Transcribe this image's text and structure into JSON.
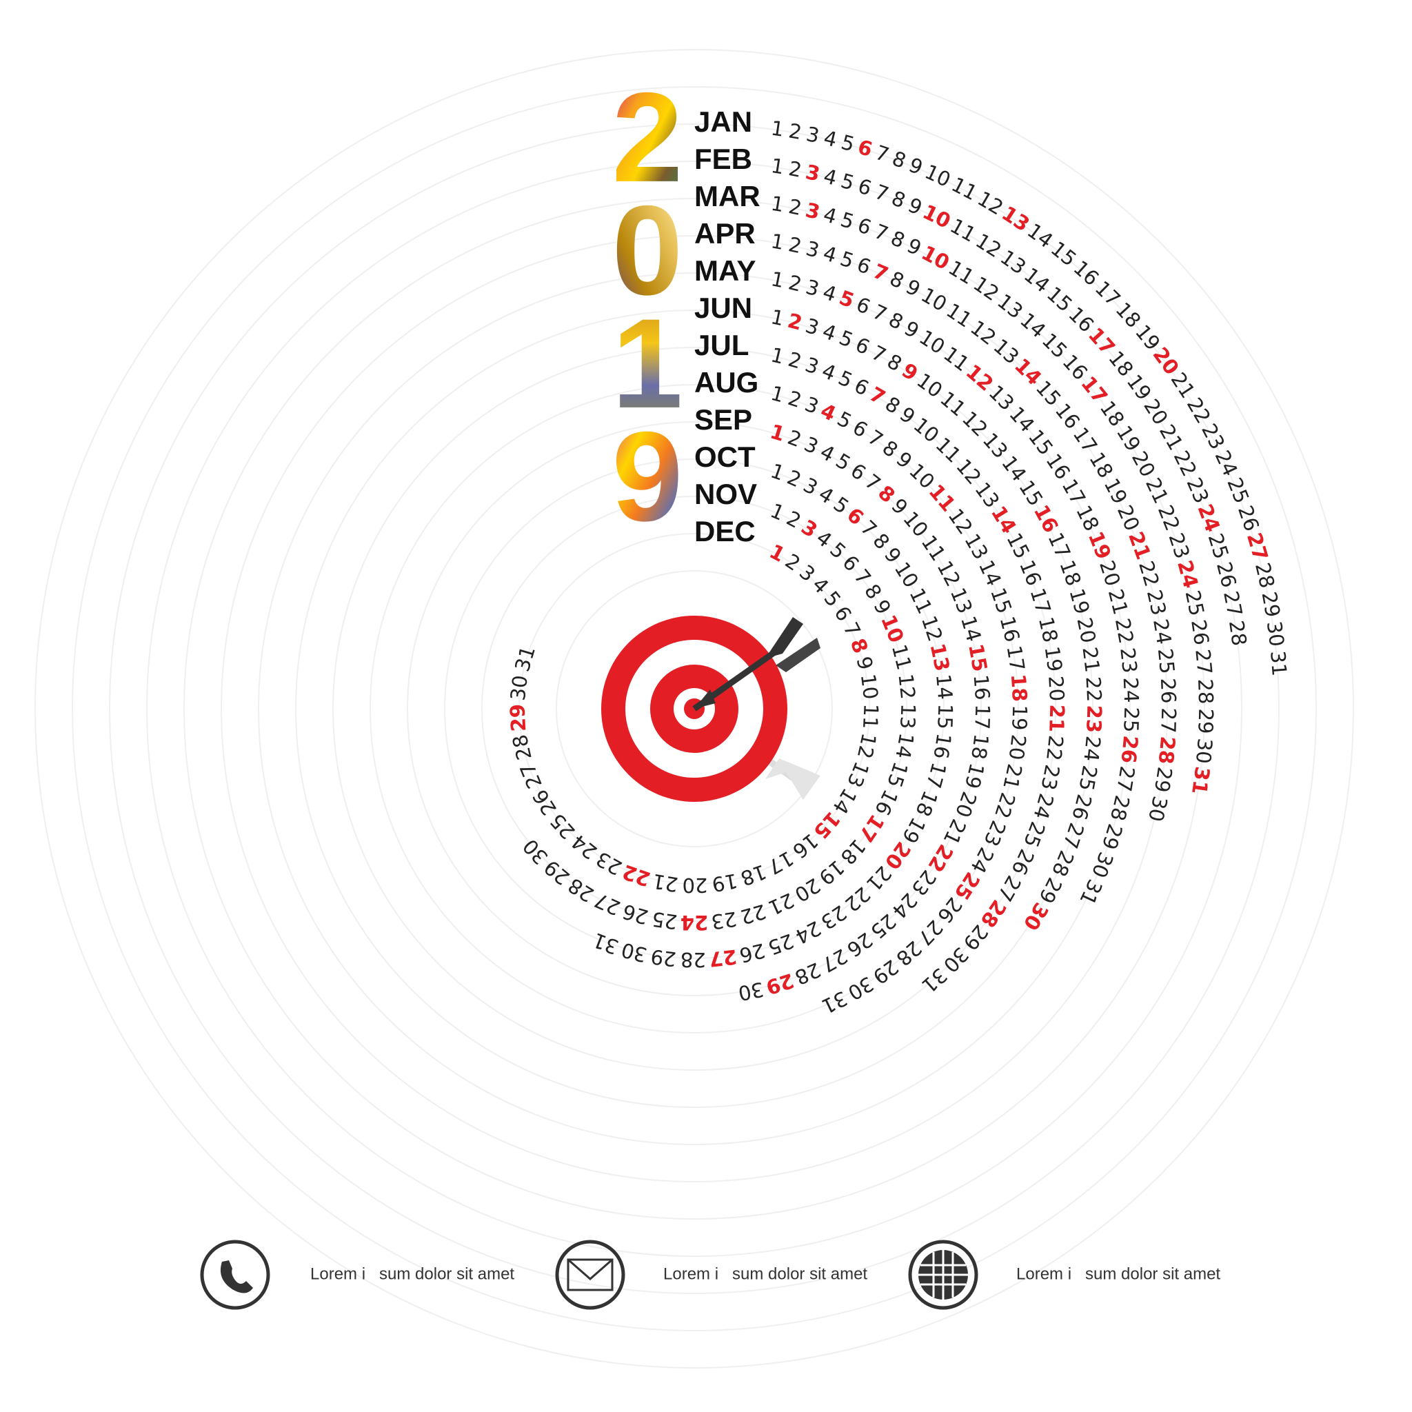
{
  "year_digits": [
    "2",
    "0",
    "1",
    "9"
  ],
  "months": [
    {
      "name": "JAN",
      "days": [
        1,
        2,
        3,
        4,
        5,
        6,
        7,
        8,
        9,
        10,
        11,
        12,
        13,
        14,
        15,
        16,
        17,
        18,
        19,
        20,
        21,
        22,
        23,
        24,
        25,
        26,
        27,
        28,
        29,
        30,
        31
      ],
      "red_days": [
        6,
        13,
        20,
        27
      ]
    },
    {
      "name": "FEB",
      "days": [
        1,
        2,
        3,
        4,
        5,
        6,
        7,
        8,
        9,
        10,
        11,
        12,
        13,
        14,
        15,
        16,
        17,
        18,
        19,
        20,
        21,
        22,
        23,
        24,
        25,
        26,
        27,
        28
      ],
      "red_days": [
        3,
        10,
        17,
        24
      ]
    },
    {
      "name": "MAR",
      "days": [
        1,
        2,
        3,
        4,
        5,
        6,
        7,
        8,
        9,
        10,
        11,
        12,
        13,
        14,
        15,
        16,
        17,
        18,
        19,
        20,
        21,
        22,
        23,
        24,
        25,
        26,
        27,
        28,
        29,
        30,
        31
      ],
      "red_days": [
        3,
        10,
        17,
        24,
        31
      ]
    },
    {
      "name": "APR",
      "days": [
        1,
        2,
        3,
        4,
        5,
        6,
        7,
        8,
        9,
        10,
        11,
        12,
        13,
        14,
        15,
        16,
        17,
        18,
        19,
        20,
        21,
        22,
        23,
        24,
        25,
        26,
        27,
        28,
        29,
        30
      ],
      "red_days": [
        7,
        14,
        21,
        28
      ]
    },
    {
      "name": "MAY",
      "days": [
        1,
        2,
        3,
        4,
        5,
        6,
        7,
        8,
        9,
        10,
        11,
        12,
        13,
        14,
        15,
        16,
        17,
        18,
        19,
        20,
        21,
        22,
        23,
        24,
        25,
        26,
        27,
        28,
        29,
        30,
        31
      ],
      "red_days": [
        5,
        12,
        19,
        26
      ]
    },
    {
      "name": "JUN",
      "days": [
        1,
        2,
        3,
        4,
        5,
        6,
        7,
        8,
        9,
        10,
        11,
        12,
        13,
        14,
        15,
        16,
        17,
        18,
        19,
        20,
        21,
        22,
        23,
        24,
        25,
        26,
        27,
        28,
        29,
        30
      ],
      "red_days": [
        2,
        9,
        16,
        23,
        30
      ]
    },
    {
      "name": "JUL",
      "days": [
        1,
        2,
        3,
        4,
        5,
        6,
        7,
        8,
        9,
        10,
        11,
        12,
        13,
        14,
        15,
        16,
        17,
        18,
        19,
        20,
        21,
        22,
        23,
        24,
        25,
        26,
        27,
        28,
        29,
        30,
        31
      ],
      "red_days": [
        7,
        14,
        21,
        28
      ]
    },
    {
      "name": "AUG",
      "days": [
        1,
        2,
        3,
        4,
        5,
        6,
        7,
        8,
        9,
        10,
        11,
        12,
        13,
        14,
        15,
        16,
        17,
        18,
        19,
        20,
        21,
        22,
        23,
        24,
        25,
        26,
        27,
        28,
        29,
        30,
        31
      ],
      "red_days": [
        4,
        11,
        18,
        25
      ]
    },
    {
      "name": "SEP",
      "days": [
        1,
        2,
        3,
        4,
        5,
        6,
        7,
        8,
        9,
        10,
        11,
        12,
        13,
        14,
        15,
        16,
        17,
        18,
        19,
        20,
        21,
        22,
        23,
        24,
        25,
        26,
        27,
        28,
        29,
        30
      ],
      "red_days": [
        1,
        8,
        15,
        22,
        29
      ]
    },
    {
      "name": "OCT",
      "days": [
        1,
        2,
        3,
        4,
        5,
        6,
        7,
        8,
        9,
        10,
        11,
        12,
        13,
        14,
        15,
        16,
        17,
        18,
        19,
        20,
        21,
        22,
        23,
        24,
        25,
        26,
        27,
        28,
        29,
        30,
        31
      ],
      "red_days": [
        6,
        13,
        20,
        27
      ]
    },
    {
      "name": "NOV",
      "days": [
        1,
        2,
        3,
        4,
        5,
        6,
        7,
        8,
        9,
        10,
        11,
        12,
        13,
        14,
        15,
        16,
        17,
        18,
        19,
        20,
        21,
        22,
        23,
        24,
        25,
        26,
        27,
        28,
        29,
        30
      ],
      "red_days": [
        3,
        10,
        17,
        24
      ]
    },
    {
      "name": "DEC",
      "days": [
        1,
        2,
        3,
        4,
        5,
        6,
        7,
        8,
        9,
        10,
        11,
        12,
        13,
        14,
        15,
        16,
        17,
        18,
        19,
        20,
        21,
        22,
        23,
        24,
        25,
        26,
        27,
        28,
        29,
        30,
        31
      ],
      "red_days": [
        1,
        8,
        15,
        22,
        29
      ]
    }
  ],
  "contacts": [
    {
      "text": "Lorem i   sum dolor sit amet"
    },
    {
      "text": "Lorem i   sum dolor sit amet"
    },
    {
      "text": "Lorem i   sum dolor sit amet"
    }
  ]
}
